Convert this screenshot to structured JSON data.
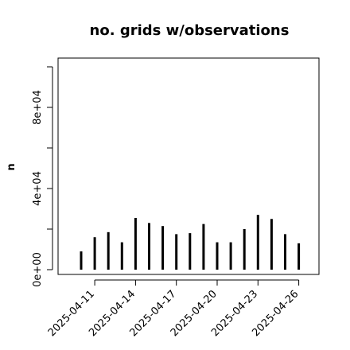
{
  "chart_data": {
    "type": "bar",
    "title": "no. grids w/observations",
    "xlabel": "",
    "ylabel": "n",
    "dates": [
      "2025-04-10",
      "2025-04-11",
      "2025-04-12",
      "2025-04-13",
      "2025-04-14",
      "2025-04-15",
      "2025-04-16",
      "2025-04-17",
      "2025-04-18",
      "2025-04-19",
      "2025-04-20",
      "2025-04-21",
      "2025-04-22",
      "2025-04-23",
      "2025-04-24",
      "2025-04-25",
      "2025-04-26"
    ],
    "values": [
      9000,
      16000,
      18500,
      13500,
      25500,
      23000,
      21500,
      17500,
      18000,
      22500,
      13500,
      13500,
      20000,
      27000,
      25000,
      17500,
      13000
    ],
    "ylim": [
      0,
      100000
    ],
    "yticks": [
      {
        "value": 0,
        "label": "0e+00"
      },
      {
        "value": 40000,
        "label": "4e+04"
      },
      {
        "value": 80000,
        "label": "8e+04"
      }
    ],
    "yminor_ticks": [
      20000,
      60000,
      100000
    ],
    "xticks": [
      {
        "date": "2025-04-11",
        "label": "2025-04-11",
        "color": "#000000"
      },
      {
        "date": "2025-04-14",
        "label": "2025-04-14",
        "color": "#000000"
      },
      {
        "date": "2025-04-17",
        "label": "2025-04-17",
        "color": "#228B22"
      },
      {
        "date": "2025-04-20",
        "label": "2025-04-20",
        "color": "#000000"
      },
      {
        "date": "2025-04-23",
        "label": "2025-04-23",
        "color": "#000000"
      },
      {
        "date": "2025-04-26",
        "label": "2025-04-26",
        "color": "#000000"
      }
    ],
    "bar_color": "#000000",
    "grid": false,
    "legend": "none"
  }
}
